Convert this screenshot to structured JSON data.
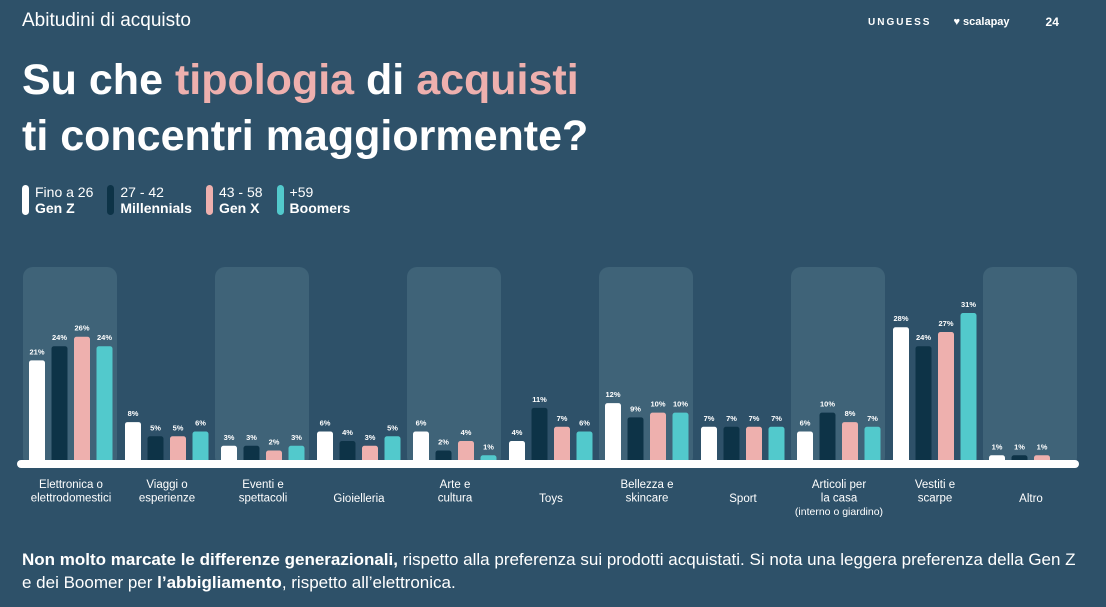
{
  "header": {
    "section_title": "Abitudini di acquisto",
    "logo_left": "UNGUESS",
    "logo_right": "scalapay",
    "page_number": "24"
  },
  "headline": {
    "w1": "Su che ",
    "w2": "tipologia",
    "w3": " di ",
    "w4": "acquisti",
    "line2": "ti concentri maggiormente?"
  },
  "legend": [
    {
      "range": "Fino a 26",
      "name": "Gen Z",
      "color": "#ffffff"
    },
    {
      "range": "27 - 42",
      "name": "Millennials",
      "color": "#0d3347"
    },
    {
      "range": "43 - 58",
      "name": "Gen X",
      "color": "#eeb0ae"
    },
    {
      "range": "+59",
      "name": "Boomers",
      "color": "#52c9cc"
    }
  ],
  "chart_data": {
    "type": "bar",
    "categories": [
      [
        "Elettronica o",
        "elettrodomestici"
      ],
      [
        "Viaggi o",
        "esperienze"
      ],
      [
        "Eventi e",
        "spettacoli"
      ],
      [
        "Gioielleria"
      ],
      [
        "Arte e",
        "cultura"
      ],
      [
        "Toys"
      ],
      [
        "Bellezza e",
        "skincare"
      ],
      [
        "Sport"
      ],
      [
        "Articoli per",
        "la casa",
        "(interno o giardino)"
      ],
      [
        "Vestiti e",
        "scarpe"
      ],
      [
        "Altro"
      ]
    ],
    "series": [
      {
        "name": "Gen Z",
        "color": "#ffffff",
        "values": [
          21,
          8,
          3,
          6,
          6,
          4,
          12,
          7,
          6,
          28,
          1
        ]
      },
      {
        "name": "Millennials",
        "color": "#0d3347",
        "values": [
          24,
          5,
          3,
          4,
          2,
          11,
          9,
          7,
          10,
          24,
          1
        ]
      },
      {
        "name": "Gen X",
        "color": "#eeb0ae",
        "values": [
          26,
          5,
          2,
          3,
          4,
          7,
          10,
          7,
          8,
          27,
          1
        ]
      },
      {
        "name": "Boomers",
        "color": "#52c9cc",
        "values": [
          24,
          6,
          3,
          5,
          1,
          6,
          10,
          7,
          7,
          31,
          null
        ]
      }
    ],
    "value_suffix": "%",
    "ylim": [
      0,
      31
    ]
  },
  "footnote": {
    "bold1": "Non molto marcate le differenze generazionali,",
    "text1": " rispetto alla preferenza sui prodotti acquistati. Si nota una leggera preferenza della Gen Z e dei Boomer per ",
    "bold2": "l’abbigliamento",
    "text2": ", rispetto all’elettronica."
  }
}
